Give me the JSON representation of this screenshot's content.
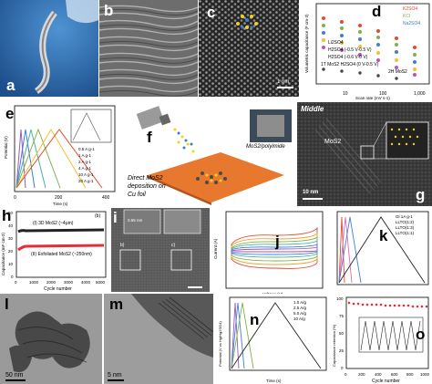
{
  "panels": {
    "a": {
      "label": "a"
    },
    "b": {
      "label": "b"
    },
    "c": {
      "label": "c",
      "scale": "1 nm"
    },
    "d": {
      "label": "d",
      "legend": [
        "K2SO4",
        "KCl",
        "Na2SO4",
        "Li2SO4",
        "H2SO4 (-0.5 V-0.5 V)",
        "H2SO4 (-0.6 V-0 V)",
        "1T MoS2 H2SO4 (0 V-0.5 V)",
        "2H MoS2"
      ],
      "xlabel": "Scan rate (mV s-1)",
      "ylabel": "Volumetric capacitance (F cm-3)",
      "xticks": [
        "10",
        "100",
        "1,000"
      ]
    },
    "e": {
      "label": "e",
      "legend": [
        "0.5 A g-1",
        "1 A g-1",
        "2 A g-1",
        "4 A g-1",
        "10 A g-1",
        "20 A g-1"
      ],
      "xlabel": "Time (s)",
      "ylabel": "Potential (V)",
      "xticks": [
        "0",
        "200",
        "400"
      ]
    },
    "f": {
      "label": "f",
      "caption1": "MoS2/polyimide",
      "caption2": "Direct MoS2",
      "caption3": "deposition on",
      "caption4": "Cu foil"
    },
    "g": {
      "label": "g",
      "middle": "Middle",
      "mos2": "MoS2",
      "scale": "10 nm"
    },
    "h": {
      "label": "h",
      "corner": "(b)",
      "series1": "(I) 3D MoS2 (~4μm)",
      "series2": "(II) Exfoliated MoS2 (~250nm)",
      "xlabel": "Cycle number",
      "ylabel": "Capacitance (mF cm-2)",
      "xticks": [
        "0",
        "1000",
        "2000",
        "3000",
        "4000",
        "5000"
      ],
      "yticks": [
        "0",
        "10",
        "20",
        "30",
        "40",
        "50"
      ]
    },
    "i": {
      "label": "i",
      "sub_b": "b)",
      "sub_c": "c)",
      "inset": "0.65 nm"
    },
    "j": {
      "label": "j",
      "xlabel": "Voltage (V)",
      "ylabel": "Current (A)"
    },
    "k": {
      "label": "k",
      "legend": [
        "Gl 1A g-1",
        "LLTO(1:2)",
        "LLTO(1:3)",
        "LLTO(1:1)"
      ]
    },
    "l": {
      "label": "l",
      "scale": "50 nm"
    },
    "m": {
      "label": "m",
      "scale": "5 nm"
    },
    "n": {
      "label": "n",
      "legend": [
        "1.0 A/g",
        "2.5 A/g",
        "5.0 A/g",
        "10 A/g"
      ],
      "xlabel": "Time (s)",
      "ylabel": "Potential (V vs Hg/Hg2SO4)"
    },
    "o": {
      "label": "o",
      "xlabel": "Cycle number",
      "ylabel": "Capacitance retention (%)",
      "xticks": [
        "0",
        "200",
        "400",
        "600",
        "800",
        "1000"
      ],
      "yticks": [
        "0",
        "25",
        "50",
        "75",
        "100"
      ]
    }
  }
}
